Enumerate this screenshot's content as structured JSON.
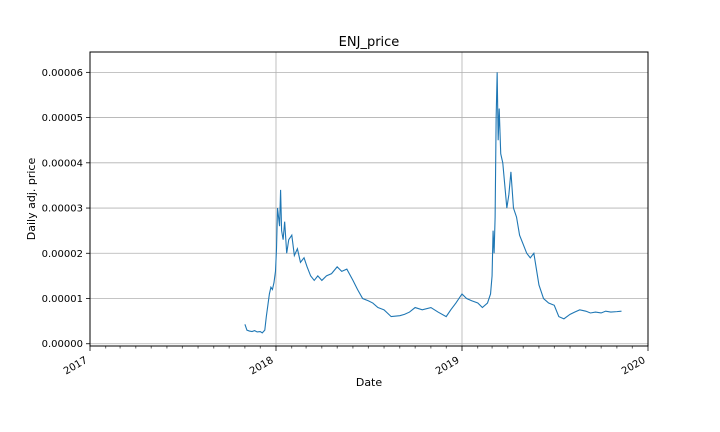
{
  "chart_data": {
    "type": "line",
    "title": "ENJ_price",
    "xlabel": "Date",
    "ylabel": "Daily adj. price",
    "x_ticks": [
      "2017",
      "2018",
      "2019",
      "2020"
    ],
    "y_ticks": [
      "0.00000",
      "0.00001",
      "0.00002",
      "0.00003",
      "0.00004",
      "0.00005",
      "0.00006"
    ],
    "xlim": [
      "2017-01-01",
      "2020-01-01"
    ],
    "ylim": [
      -5e-07,
      6.45e-05
    ],
    "grid": true,
    "series": [
      {
        "color": "#1f77b4",
        "x": [
          "2017-11-01",
          "2017-11-05",
          "2017-11-10",
          "2017-11-15",
          "2017-11-20",
          "2017-11-25",
          "2017-12-01",
          "2017-12-05",
          "2017-12-10",
          "2017-12-13",
          "2017-12-16",
          "2017-12-19",
          "2017-12-22",
          "2017-12-25",
          "2017-12-28",
          "2017-12-31",
          "2018-01-02",
          "2018-01-04",
          "2018-01-06",
          "2018-01-08",
          "2018-01-10",
          "2018-01-12",
          "2018-01-15",
          "2018-01-18",
          "2018-01-22",
          "2018-01-26",
          "2018-02-01",
          "2018-02-06",
          "2018-02-12",
          "2018-02-18",
          "2018-02-25",
          "2018-03-03",
          "2018-03-10",
          "2018-03-17",
          "2018-03-24",
          "2018-04-01",
          "2018-04-10",
          "2018-04-20",
          "2018-05-01",
          "2018-05-10",
          "2018-05-20",
          "2018-06-01",
          "2018-06-10",
          "2018-06-20",
          "2018-07-01",
          "2018-07-10",
          "2018-07-20",
          "2018-08-01",
          "2018-08-15",
          "2018-09-01",
          "2018-09-10",
          "2018-09-20",
          "2018-10-01",
          "2018-10-15",
          "2018-11-01",
          "2018-11-15",
          "2018-12-01",
          "2018-12-10",
          "2018-12-20",
          "2019-01-01",
          "2019-01-10",
          "2019-01-20",
          "2019-02-01",
          "2019-02-10",
          "2019-02-20",
          "2019-02-26",
          "2019-03-01",
          "2019-03-03",
          "2019-03-05",
          "2019-03-07",
          "2019-03-09",
          "2019-03-11",
          "2019-03-13",
          "2019-03-15",
          "2019-03-18",
          "2019-03-22",
          "2019-03-26",
          "2019-03-30",
          "2019-04-03",
          "2019-04-07",
          "2019-04-12",
          "2019-04-18",
          "2019-04-24",
          "2019-05-01",
          "2019-05-08",
          "2019-05-15",
          "2019-05-22",
          "2019-06-01",
          "2019-06-10",
          "2019-06-20",
          "2019-07-01",
          "2019-07-10",
          "2019-07-20",
          "2019-08-01",
          "2019-08-10",
          "2019-08-20",
          "2019-09-01",
          "2019-09-10",
          "2019-09-20",
          "2019-10-01",
          "2019-10-10",
          "2019-10-20",
          "2019-11-01",
          "2019-11-10"
        ],
        "y": [
          4.3e-06,
          3e-06,
          2.8e-06,
          2.7e-06,
          2.9e-06,
          2.6e-06,
          2.7e-06,
          2.4e-06,
          3e-06,
          6e-06,
          8.5e-06,
          1.1e-05,
          1.25e-05,
          1.2e-05,
          1.35e-05,
          1.6e-05,
          2.1e-05,
          3e-05,
          2.8e-05,
          2.6e-05,
          3.4e-05,
          2.5e-05,
          2.3e-05,
          2.7e-05,
          2e-05,
          2.3e-05,
          2.4e-05,
          1.95e-05,
          2.1e-05,
          1.8e-05,
          1.9e-05,
          1.7e-05,
          1.5e-05,
          1.4e-05,
          1.5e-05,
          1.4e-05,
          1.5e-05,
          1.55e-05,
          1.7e-05,
          1.6e-05,
          1.65e-05,
          1.4e-05,
          1.2e-05,
          1e-05,
          9.5e-06,
          9e-06,
          8e-06,
          7.5e-06,
          6e-06,
          6.2e-06,
          6.5e-06,
          7e-06,
          8e-06,
          7.5e-06,
          8e-06,
          7e-06,
          6e-06,
          7.5e-06,
          9e-06,
          1.1e-05,
          1e-05,
          9.5e-06,
          9e-06,
          8e-06,
          9e-06,
          1.1e-05,
          1.5e-05,
          2.5e-05,
          2e-05,
          2.8e-05,
          5e-05,
          6e-05,
          4.5e-05,
          5.2e-05,
          4.2e-05,
          4e-05,
          3.5e-05,
          3e-05,
          3.3e-05,
          3.8e-05,
          3e-05,
          2.8e-05,
          2.4e-05,
          2.2e-05,
          2e-05,
          1.9e-05,
          2e-05,
          1.3e-05,
          1e-05,
          9e-06,
          8.5e-06,
          6e-06,
          5.5e-06,
          6.5e-06,
          7e-06,
          7.5e-06,
          7.2e-06,
          6.8e-06,
          7e-06,
          6.8e-06,
          7.2e-06,
          7e-06,
          7.1e-06,
          7.2e-06
        ]
      }
    ]
  }
}
